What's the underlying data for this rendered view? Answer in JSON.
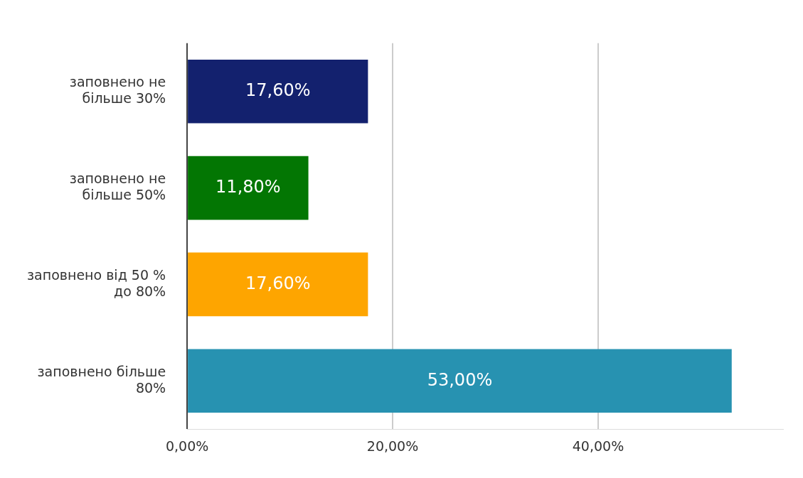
{
  "chart_data": {
    "type": "bar",
    "orientation": "horizontal",
    "categories": [
      "заповнено не більше 30%",
      "заповнено не більше 50%",
      "заповнено від 50 % до 80%",
      "заповнено більше 80%"
    ],
    "values": [
      17.6,
      11.8,
      17.6,
      53.0
    ],
    "colors": [
      "#13216e",
      "#037603",
      "#fea500",
      "#2792b1"
    ],
    "value_labels": [
      "17,60%",
      "11,80%",
      "17,60%",
      "53,00%"
    ],
    "xlim": [
      0,
      58
    ],
    "xticks": [
      {
        "value": 0,
        "label": "0,00%"
      },
      {
        "value": 20,
        "label": "20,00%"
      },
      {
        "value": 40,
        "label": "40,00%"
      }
    ],
    "grid": "x",
    "legend": false
  }
}
